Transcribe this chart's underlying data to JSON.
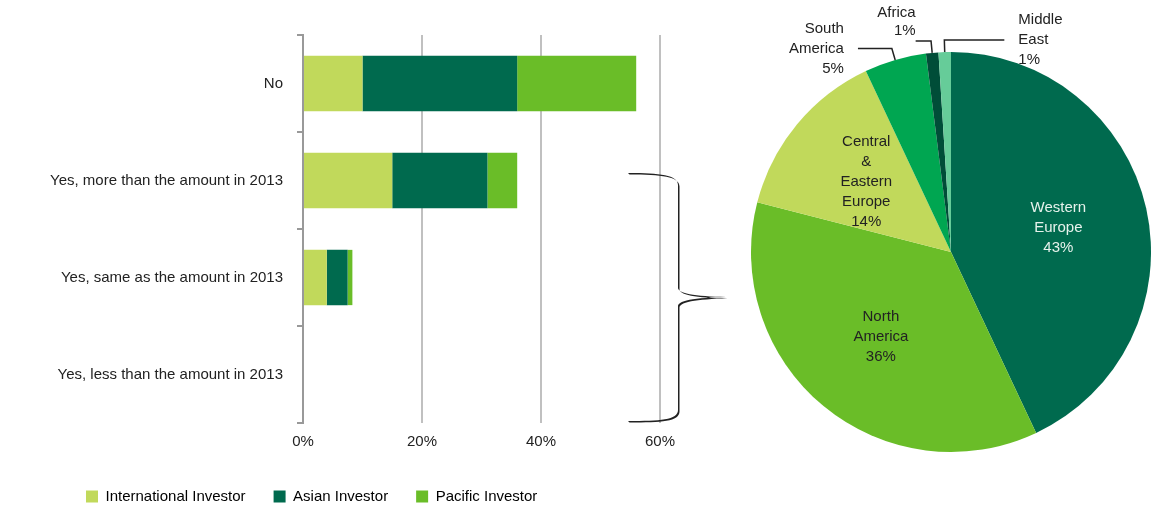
{
  "chart_data": [
    {
      "type": "bar",
      "orientation": "horizontal",
      "stacked": true,
      "categories": [
        "No",
        "Yes, more than the amount in 2013",
        "Yes, same as the amount in 2013",
        "Yes, less than the amount in 2013"
      ],
      "series": [
        {
          "name": "International Investor",
          "color": "#c1d95b",
          "values": [
            10,
            15,
            4,
            0
          ]
        },
        {
          "name": "Asian Investor",
          "color": "#006a4e",
          "values": [
            26,
            16,
            3.5,
            0
          ]
        },
        {
          "name": "Pacific Investor",
          "color": "#6abd28",
          "values": [
            20,
            5,
            0.8,
            0
          ]
        }
      ],
      "xlim": [
        0,
        60
      ],
      "xticks": [
        {
          "value": 0,
          "label": "0%"
        },
        {
          "value": 20,
          "label": "20%"
        },
        {
          "value": 40,
          "label": "40%"
        },
        {
          "value": 60,
          "label": "60%"
        }
      ],
      "grid": "x",
      "legend": "bottom"
    },
    {
      "type": "pie",
      "categories": [
        "Western Europe",
        "North America",
        "Central & Eastern Europe",
        "South America",
        "Africa",
        "Middle East"
      ],
      "values": [
        43,
        36,
        14,
        5,
        1,
        1
      ],
      "value_labels": [
        "43%",
        "36%",
        "14%",
        "5%",
        "1%",
        "1%"
      ],
      "colors": [
        "#006a4e",
        "#6abd28",
        "#c1d95b",
        "#00a651",
        "#004d38",
        "#66cc99"
      ]
    }
  ]
}
